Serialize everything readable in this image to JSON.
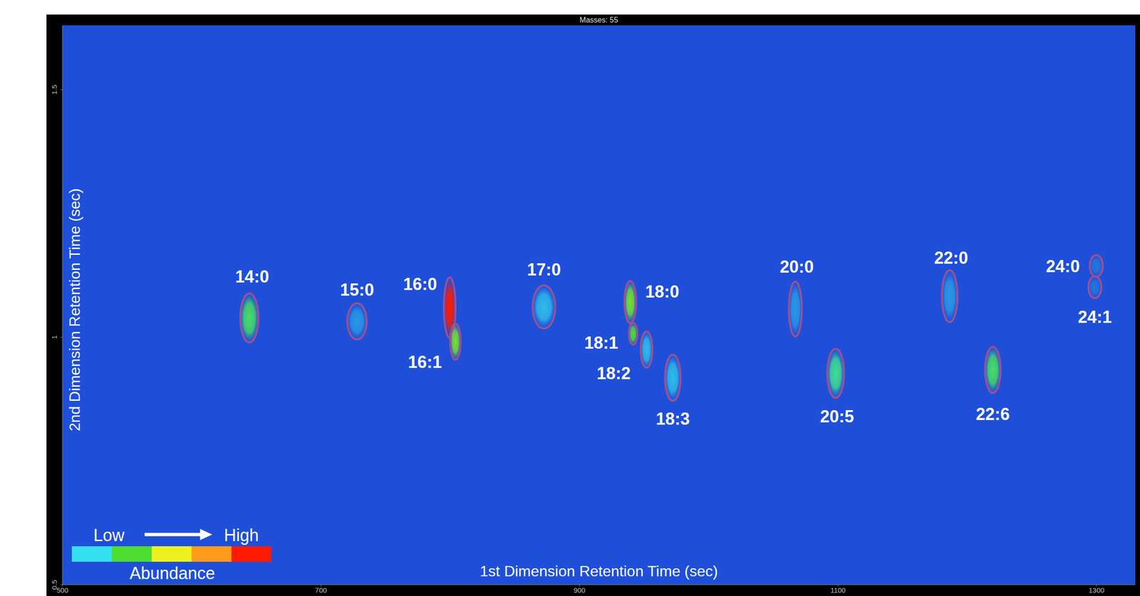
{
  "chart_data": {
    "type": "gcxgc_scatter",
    "title": "Masses: 55",
    "x_label": "1st Dimension Retention Time (sec)",
    "y_label": "2nd Dimension Retention Time (sec)",
    "xlim": [
      500,
      1330
    ],
    "xticks": [
      500,
      700,
      900,
      1100,
      1300
    ],
    "ylim": [
      0.5,
      1.63
    ],
    "yticks": [
      0.5,
      1,
      1.5
    ],
    "grid": false,
    "marker": "ellipse",
    "color": "#a0508f",
    "peaks": [
      {
        "label": "14:0",
        "x": 644.6,
        "y": 1.039,
        "width": 14,
        "height": 0.099,
        "abundance": 0.35
      },
      {
        "label": "15:0",
        "x": 727.9,
        "y": 1.032,
        "width": 15,
        "height": 0.073,
        "abundance": 0.1
      },
      {
        "label": "16:0",
        "x": 799.6,
        "y": 1.06,
        "width": 9,
        "height": 0.122,
        "abundance": 1.0
      },
      {
        "label": "16:1",
        "x": 804.0,
        "y": 0.991,
        "width": 8,
        "height": 0.073,
        "abundance": 0.45
      },
      {
        "label": "17:0",
        "x": 872.5,
        "y": 1.061,
        "width": 17.5,
        "height": 0.087,
        "abundance": 0.15
      },
      {
        "label": "18:0",
        "x": 939.3,
        "y": 1.071,
        "width": 9,
        "height": 0.085,
        "abundance": 0.45
      },
      {
        "label": "18:1",
        "x": 941.5,
        "y": 1.007,
        "width": 6.5,
        "height": 0.044,
        "abundance": 0.4
      },
      {
        "label": "18:2",
        "x": 951.9,
        "y": 0.975,
        "width": 9,
        "height": 0.073,
        "abundance": 0.15
      },
      {
        "label": "18:3",
        "x": 972.2,
        "y": 0.918,
        "width": 12,
        "height": 0.093,
        "abundance": 0.15
      },
      {
        "label": "20:0",
        "x": 1067.0,
        "y": 1.057,
        "width": 10,
        "height": 0.111,
        "abundance": 0.1
      },
      {
        "label": "20:5",
        "x": 1098.2,
        "y": 0.927,
        "width": 13,
        "height": 0.099,
        "abundance": 0.3
      },
      {
        "label": "22:0",
        "x": 1186.4,
        "y": 1.083,
        "width": 12,
        "height": 0.105,
        "abundance": 0.1
      },
      {
        "label": "22:6",
        "x": 1219.8,
        "y": 0.934,
        "width": 12,
        "height": 0.093,
        "abundance": 0.35
      },
      {
        "label": "24:0",
        "x": 1299.8,
        "y": 1.144,
        "width": 10,
        "height": 0.044,
        "abundance": 0.05
      },
      {
        "label": "24:1",
        "x": 1298.7,
        "y": 1.101,
        "width": 10,
        "height": 0.044,
        "abundance": 0.05
      }
    ],
    "colorbar": {
      "title": "Abundance",
      "low_label": "Low",
      "high_label": "High",
      "range": [
        0,
        1
      ],
      "colors": [
        "#33e0f0",
        "#4ddd33",
        "#eef020",
        "#ff9a1a",
        "#ff1a00"
      ]
    }
  }
}
